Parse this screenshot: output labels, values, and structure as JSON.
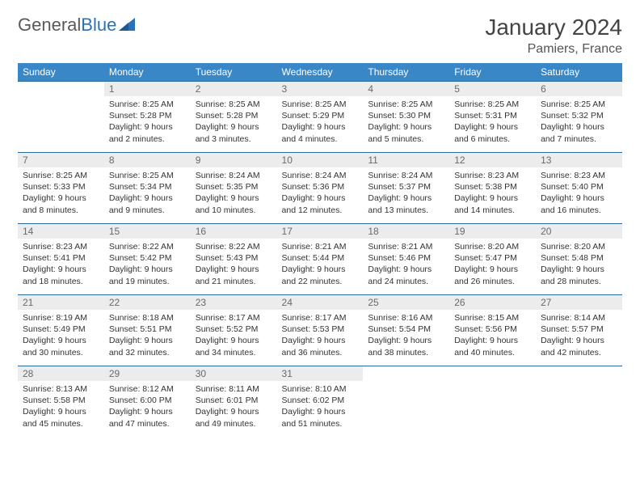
{
  "logo": {
    "text1": "General",
    "text2": "Blue"
  },
  "title": "January 2024",
  "location": "Pamiers, France",
  "header_bg": "#3a87c8",
  "daynum_bg": "#ececec",
  "row_border": "#2a6aa0",
  "weekdays": [
    "Sunday",
    "Monday",
    "Tuesday",
    "Wednesday",
    "Thursday",
    "Friday",
    "Saturday"
  ],
  "weeks": [
    [
      {
        "empty": true
      },
      {
        "n": "1",
        "sr": "Sunrise: 8:25 AM",
        "ss": "Sunset: 5:28 PM",
        "dl": "Daylight: 9 hours and 2 minutes."
      },
      {
        "n": "2",
        "sr": "Sunrise: 8:25 AM",
        "ss": "Sunset: 5:28 PM",
        "dl": "Daylight: 9 hours and 3 minutes."
      },
      {
        "n": "3",
        "sr": "Sunrise: 8:25 AM",
        "ss": "Sunset: 5:29 PM",
        "dl": "Daylight: 9 hours and 4 minutes."
      },
      {
        "n": "4",
        "sr": "Sunrise: 8:25 AM",
        "ss": "Sunset: 5:30 PM",
        "dl": "Daylight: 9 hours and 5 minutes."
      },
      {
        "n": "5",
        "sr": "Sunrise: 8:25 AM",
        "ss": "Sunset: 5:31 PM",
        "dl": "Daylight: 9 hours and 6 minutes."
      },
      {
        "n": "6",
        "sr": "Sunrise: 8:25 AM",
        "ss": "Sunset: 5:32 PM",
        "dl": "Daylight: 9 hours and 7 minutes."
      }
    ],
    [
      {
        "n": "7",
        "sr": "Sunrise: 8:25 AM",
        "ss": "Sunset: 5:33 PM",
        "dl": "Daylight: 9 hours and 8 minutes."
      },
      {
        "n": "8",
        "sr": "Sunrise: 8:25 AM",
        "ss": "Sunset: 5:34 PM",
        "dl": "Daylight: 9 hours and 9 minutes."
      },
      {
        "n": "9",
        "sr": "Sunrise: 8:24 AM",
        "ss": "Sunset: 5:35 PM",
        "dl": "Daylight: 9 hours and 10 minutes."
      },
      {
        "n": "10",
        "sr": "Sunrise: 8:24 AM",
        "ss": "Sunset: 5:36 PM",
        "dl": "Daylight: 9 hours and 12 minutes."
      },
      {
        "n": "11",
        "sr": "Sunrise: 8:24 AM",
        "ss": "Sunset: 5:37 PM",
        "dl": "Daylight: 9 hours and 13 minutes."
      },
      {
        "n": "12",
        "sr": "Sunrise: 8:23 AM",
        "ss": "Sunset: 5:38 PM",
        "dl": "Daylight: 9 hours and 14 minutes."
      },
      {
        "n": "13",
        "sr": "Sunrise: 8:23 AM",
        "ss": "Sunset: 5:40 PM",
        "dl": "Daylight: 9 hours and 16 minutes."
      }
    ],
    [
      {
        "n": "14",
        "sr": "Sunrise: 8:23 AM",
        "ss": "Sunset: 5:41 PM",
        "dl": "Daylight: 9 hours and 18 minutes."
      },
      {
        "n": "15",
        "sr": "Sunrise: 8:22 AM",
        "ss": "Sunset: 5:42 PM",
        "dl": "Daylight: 9 hours and 19 minutes."
      },
      {
        "n": "16",
        "sr": "Sunrise: 8:22 AM",
        "ss": "Sunset: 5:43 PM",
        "dl": "Daylight: 9 hours and 21 minutes."
      },
      {
        "n": "17",
        "sr": "Sunrise: 8:21 AM",
        "ss": "Sunset: 5:44 PM",
        "dl": "Daylight: 9 hours and 22 minutes."
      },
      {
        "n": "18",
        "sr": "Sunrise: 8:21 AM",
        "ss": "Sunset: 5:46 PM",
        "dl": "Daylight: 9 hours and 24 minutes."
      },
      {
        "n": "19",
        "sr": "Sunrise: 8:20 AM",
        "ss": "Sunset: 5:47 PM",
        "dl": "Daylight: 9 hours and 26 minutes."
      },
      {
        "n": "20",
        "sr": "Sunrise: 8:20 AM",
        "ss": "Sunset: 5:48 PM",
        "dl": "Daylight: 9 hours and 28 minutes."
      }
    ],
    [
      {
        "n": "21",
        "sr": "Sunrise: 8:19 AM",
        "ss": "Sunset: 5:49 PM",
        "dl": "Daylight: 9 hours and 30 minutes."
      },
      {
        "n": "22",
        "sr": "Sunrise: 8:18 AM",
        "ss": "Sunset: 5:51 PM",
        "dl": "Daylight: 9 hours and 32 minutes."
      },
      {
        "n": "23",
        "sr": "Sunrise: 8:17 AM",
        "ss": "Sunset: 5:52 PM",
        "dl": "Daylight: 9 hours and 34 minutes."
      },
      {
        "n": "24",
        "sr": "Sunrise: 8:17 AM",
        "ss": "Sunset: 5:53 PM",
        "dl": "Daylight: 9 hours and 36 minutes."
      },
      {
        "n": "25",
        "sr": "Sunrise: 8:16 AM",
        "ss": "Sunset: 5:54 PM",
        "dl": "Daylight: 9 hours and 38 minutes."
      },
      {
        "n": "26",
        "sr": "Sunrise: 8:15 AM",
        "ss": "Sunset: 5:56 PM",
        "dl": "Daylight: 9 hours and 40 minutes."
      },
      {
        "n": "27",
        "sr": "Sunrise: 8:14 AM",
        "ss": "Sunset: 5:57 PM",
        "dl": "Daylight: 9 hours and 42 minutes."
      }
    ],
    [
      {
        "n": "28",
        "sr": "Sunrise: 8:13 AM",
        "ss": "Sunset: 5:58 PM",
        "dl": "Daylight: 9 hours and 45 minutes."
      },
      {
        "n": "29",
        "sr": "Sunrise: 8:12 AM",
        "ss": "Sunset: 6:00 PM",
        "dl": "Daylight: 9 hours and 47 minutes."
      },
      {
        "n": "30",
        "sr": "Sunrise: 8:11 AM",
        "ss": "Sunset: 6:01 PM",
        "dl": "Daylight: 9 hours and 49 minutes."
      },
      {
        "n": "31",
        "sr": "Sunrise: 8:10 AM",
        "ss": "Sunset: 6:02 PM",
        "dl": "Daylight: 9 hours and 51 minutes."
      },
      {
        "empty": true
      },
      {
        "empty": true
      },
      {
        "empty": true
      }
    ]
  ]
}
